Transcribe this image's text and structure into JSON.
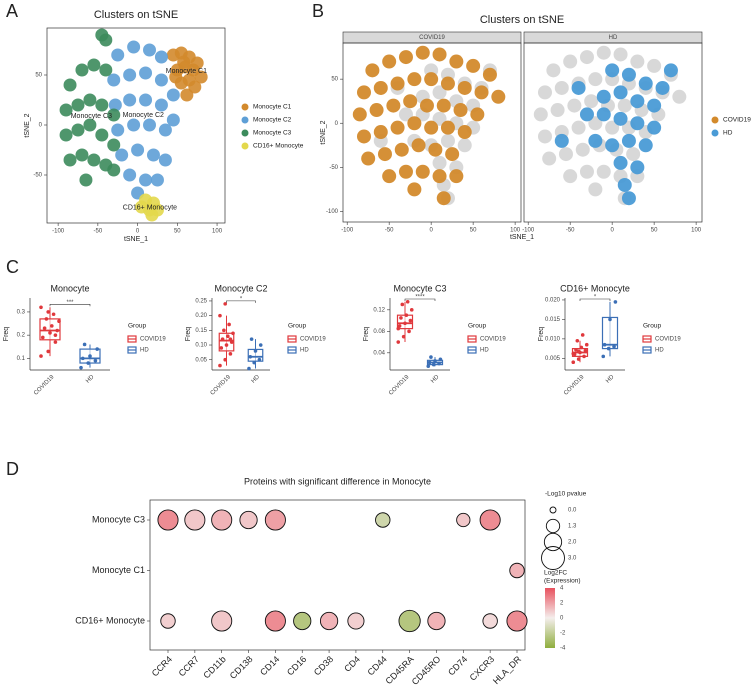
{
  "panel_labels": [
    "A",
    "B",
    "C",
    "D"
  ],
  "chart_data": [
    {
      "type": "scatter",
      "title": "Clusters on tSNE",
      "xlabel": "tSNE_1",
      "ylabel": "tSNE_2",
      "xlim": [
        -114,
        110
      ],
      "ylim": [
        -98,
        97
      ],
      "xticks": [
        -100,
        -50,
        0,
        50,
        100
      ],
      "yticks": [
        -50,
        0,
        50
      ],
      "legend": "right",
      "series": [
        {
          "name": "Monocyte C1",
          "color": "#d38a2c",
          "x": [
            45,
            55,
            65,
            75,
            50,
            60,
            70,
            80,
            55,
            65,
            72,
            48,
            62,
            58
          ],
          "y": [
            70,
            72,
            68,
            62,
            55,
            58,
            55,
            48,
            42,
            45,
            38,
            48,
            30,
            63
          ]
        },
        {
          "name": "Monocyte C2",
          "color": "#5e9fd6",
          "x": [
            -25,
            -5,
            15,
            30,
            -30,
            -10,
            10,
            30,
            45,
            -28,
            -10,
            10,
            30,
            45,
            -25,
            -5,
            15,
            35,
            -20,
            0,
            20,
            35,
            -10,
            10,
            25,
            0
          ],
          "y": [
            70,
            78,
            75,
            68,
            45,
            50,
            52,
            45,
            30,
            20,
            25,
            25,
            20,
            5,
            -5,
            0,
            0,
            -5,
            -30,
            -25,
            -30,
            -35,
            -50,
            -55,
            -55,
            -68
          ]
        },
        {
          "name": "Monocyte C3",
          "color": "#3c8b5c",
          "x": [
            -85,
            -70,
            -55,
            -40,
            -90,
            -75,
            -60,
            -45,
            -30,
            -90,
            -75,
            -60,
            -45,
            -30,
            -85,
            -70,
            -55,
            -40,
            -65,
            -45,
            -40,
            -30
          ],
          "y": [
            40,
            55,
            60,
            55,
            15,
            20,
            25,
            20,
            10,
            -10,
            -5,
            0,
            -10,
            -20,
            -35,
            -30,
            -35,
            -40,
            -55,
            90,
            85,
            -45
          ]
        },
        {
          "name": "CD16+ Monocyte",
          "color": "#e3d84c",
          "x": [
            10,
            20,
            15,
            25,
            5,
            18
          ],
          "y": [
            -75,
            -78,
            -85,
            -85,
            -82,
            -90
          ]
        }
      ]
    },
    {
      "type": "facet_scatter",
      "title": "Clusters on tSNE",
      "xlabel": "tSNE_1",
      "ylabel": "tSNE_2",
      "facets": [
        "COVID19",
        "HD"
      ],
      "others_color": "#d6d6d6",
      "xlim": [
        -105,
        107
      ],
      "ylim": [
        -112,
        91
      ],
      "xticks": [
        -100,
        -50,
        0,
        50,
        100
      ],
      "yticks": [
        -100,
        -50,
        0,
        50
      ],
      "legend": "right",
      "series": [
        {
          "name": "COVID19",
          "color": "#d38a2c",
          "x": [
            -70,
            -50,
            -30,
            -10,
            10,
            30,
            50,
            70,
            -80,
            -60,
            -40,
            -20,
            0,
            20,
            40,
            60,
            80,
            -85,
            -65,
            -45,
            -25,
            -5,
            15,
            35,
            55,
            -80,
            -60,
            -40,
            -20,
            0,
            20,
            40,
            -75,
            -55,
            -35,
            -15,
            5,
            25,
            -50,
            -30,
            -10,
            10,
            30,
            -20,
            15
          ],
          "y": [
            60,
            70,
            75,
            80,
            78,
            70,
            65,
            55,
            35,
            40,
            45,
            50,
            50,
            45,
            40,
            35,
            30,
            10,
            15,
            20,
            25,
            20,
            20,
            15,
            10,
            -15,
            -10,
            -5,
            0,
            -5,
            -5,
            -10,
            -40,
            -35,
            -30,
            -25,
            -30,
            -35,
            -60,
            -55,
            -55,
            -60,
            -60,
            -75,
            -85
          ]
        },
        {
          "name": "HD",
          "color": "#4a9bd6",
          "x": [
            0,
            20,
            40,
            60,
            -10,
            10,
            30,
            50,
            -30,
            -10,
            10,
            30,
            50,
            -20,
            0,
            20,
            40,
            10,
            30,
            15,
            20,
            -40,
            70,
            -60
          ],
          "y": [
            60,
            55,
            45,
            40,
            30,
            35,
            25,
            20,
            10,
            10,
            5,
            0,
            -5,
            -20,
            -25,
            -20,
            -25,
            -45,
            -50,
            -70,
            -85,
            40,
            60,
            -20
          ]
        }
      ]
    },
    {
      "type": "box",
      "title": "Monocyte",
      "ylabel": "Freq",
      "categories": [
        "COVID19",
        "HD"
      ],
      "colors": [
        "#e0383c",
        "#3b6fb6"
      ],
      "legend_title": "Group",
      "annotation": "***",
      "ylim": [
        0.05,
        0.36
      ],
      "yticks": [
        0.1,
        0.2,
        0.3
      ],
      "boxes": [
        {
          "low": 0.11,
          "q1": 0.18,
          "median": 0.22,
          "q3": 0.27,
          "high": 0.32
        },
        {
          "low": 0.06,
          "q1": 0.08,
          "median": 0.1,
          "q3": 0.14,
          "high": 0.16
        }
      ],
      "points": [
        [
          0.11,
          0.13,
          0.17,
          0.19,
          0.21,
          0.22,
          0.23,
          0.24,
          0.26,
          0.27,
          0.29,
          0.32,
          0.3,
          0.2
        ],
        [
          0.06,
          0.08,
          0.09,
          0.1,
          0.11,
          0.14,
          0.16
        ]
      ]
    },
    {
      "type": "box",
      "title": "Monocyte C2",
      "ylabel": "Freq",
      "categories": [
        "COVID19",
        "HD"
      ],
      "colors": [
        "#e0383c",
        "#3b6fb6"
      ],
      "legend_title": "Group",
      "annotation": "*",
      "ylim": [
        0.015,
        0.26
      ],
      "yticks": [
        0.05,
        {
          "value": 0.1,
          "label": "0.10"
        },
        0.15,
        {
          "value": 0.2,
          "label": "0.20"
        },
        0.25
      ],
      "boxes": [
        {
          "low": 0.03,
          "q1": 0.08,
          "median": 0.115,
          "q3": 0.14,
          "high": 0.2
        },
        {
          "low": 0.02,
          "q1": 0.045,
          "median": 0.06,
          "q3": 0.085,
          "high": 0.12
        }
      ],
      "points": [
        [
          0.03,
          0.05,
          0.07,
          0.09,
          0.1,
          0.11,
          0.12,
          0.13,
          0.14,
          0.15,
          0.17,
          0.2,
          0.24,
          0.12
        ],
        [
          0.02,
          0.04,
          0.05,
          0.06,
          0.08,
          0.1,
          0.12
        ]
      ]
    },
    {
      "type": "box",
      "title": "Monocyte C3",
      "ylabel": "Freq",
      "categories": [
        "COVID19",
        "HD"
      ],
      "colors": [
        "#e0383c",
        "#3b6fb6"
      ],
      "legend_title": "Group",
      "annotation": "****",
      "ylim": [
        0.008,
        0.142
      ],
      "yticks": [
        0.04,
        0.08,
        0.12
      ],
      "boxes": [
        {
          "low": 0.06,
          "q1": 0.085,
          "median": 0.095,
          "q3": 0.11,
          "high": 0.135
        },
        {
          "low": 0.015,
          "q1": 0.018,
          "median": 0.022,
          "q3": 0.026,
          "high": 0.032
        }
      ],
      "points": [
        [
          0.06,
          0.07,
          0.08,
          0.09,
          0.095,
          0.1,
          0.105,
          0.11,
          0.12,
          0.13,
          0.135,
          0.085
        ],
        [
          0.015,
          0.018,
          0.02,
          0.022,
          0.025,
          0.028,
          0.032
        ]
      ]
    },
    {
      "type": "box",
      "title": "CD16+ Monocyte",
      "ylabel": "Freq",
      "categories": [
        "COVID19",
        "HD"
      ],
      "colors": [
        "#e0383c",
        "#3b6fb6"
      ],
      "legend_title": "Group",
      "annotation": "*",
      "ylim": [
        0.002,
        0.0205
      ],
      "yticks": [
        0.005,
        {
          "value": 0.01,
          "label": "0.010"
        },
        0.015,
        {
          "value": 0.02,
          "label": "0.020"
        }
      ],
      "boxes": [
        {
          "low": 0.004,
          "q1": 0.0055,
          "median": 0.0065,
          "q3": 0.0075,
          "high": 0.0095
        },
        {
          "low": 0.0055,
          "q1": 0.0075,
          "median": 0.0085,
          "q3": 0.0155,
          "high": 0.0195
        }
      ],
      "points": [
        [
          0.004,
          0.0048,
          0.0055,
          0.006,
          0.0065,
          0.007,
          0.0072,
          0.0078,
          0.0085,
          0.0095,
          0.011,
          0.0062,
          0.0068
        ],
        [
          0.0055,
          0.0075,
          0.008,
          0.0085,
          0.015,
          0.0195
        ]
      ]
    },
    {
      "type": "bubble",
      "title": "Proteins with significant difference in Monocyte",
      "columns": [
        "CCR4",
        "CCR7",
        "CD11b",
        "CD138",
        "CD14",
        "CD16",
        "CD38",
        "CD4",
        "CD44",
        "CD45RA",
        "CD45RO",
        "CD74",
        "CXCR3",
        "HLA_DR"
      ],
      "size_title": "-Log10 pvalue",
      "size_ticks": [
        {
          "value": 0,
          "label": "0.0"
        },
        1.3,
        {
          "value": 2,
          "label": "2.0"
        },
        {
          "value": 3,
          "label": "3.0"
        }
      ],
      "size_lim": [
        0,
        3
      ],
      "color_title": [
        "Log2FC",
        "(Expression)"
      ],
      "color_lim": [
        -4,
        4
      ],
      "color_ticks": [
        4,
        2,
        0,
        -2,
        -4
      ],
      "colors": [
        "#8fae3e",
        "#f4eeec",
        "#e8515e"
      ],
      "series": [
        {
          "name": "Monocyte C3",
          "values": [
            2.5,
            2.5,
            2.5,
            2.0,
            2.5,
            null,
            null,
            null,
            1.5,
            null,
            null,
            1.3,
            2.5,
            null
          ],
          "log2fc": [
            2.5,
            1.0,
            1.5,
            1.0,
            2.0,
            null,
            null,
            null,
            -1.5,
            null,
            null,
            1.0,
            2.5,
            null
          ]
        },
        {
          "name": "Monocyte C1",
          "values": [
            null,
            null,
            null,
            null,
            null,
            null,
            null,
            null,
            null,
            null,
            null,
            null,
            null,
            1.5
          ],
          "log2fc": [
            null,
            null,
            null,
            null,
            null,
            null,
            null,
            null,
            null,
            null,
            null,
            null,
            null,
            1.5
          ]
        },
        {
          "name": "CD16+ Monocyte",
          "values": [
            1.5,
            null,
            2.5,
            null,
            2.5,
            2.0,
            2.0,
            1.8,
            null,
            2.7,
            2.0,
            null,
            1.5,
            2.5
          ],
          "log2fc": [
            0.8,
            null,
            1.0,
            null,
            2.5,
            -2.5,
            1.5,
            0.8,
            null,
            -2.5,
            1.5,
            null,
            0.5,
            2.5
          ]
        }
      ]
    }
  ]
}
